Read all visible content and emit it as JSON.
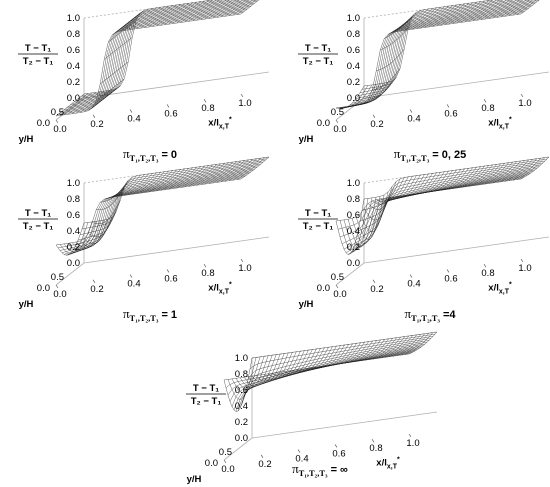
{
  "figure": {
    "z_axis_label": {
      "numerator": "T − T₁",
      "denominator": "T₂ − T₁"
    },
    "y_axis_label": "y/H",
    "x_axis_label": "x/l",
    "x_axis_label_subscript": "x,T",
    "x_axis_label_superscript": "*",
    "caption_symbol": "π",
    "caption_subscript": "T₁,T₂,T₃"
  },
  "chart_data": [
    {
      "type": "surface",
      "panel": "a",
      "caption_value": "= 0",
      "z_ticks": [
        "0.0",
        "0.2",
        "0.4",
        "0.6",
        "0.8",
        "1.0"
      ],
      "x_ticks": [
        "0.0",
        "0.2",
        "0.4",
        "0.6",
        "0.8",
        "1.0"
      ],
      "y_ticks": [
        "0.0",
        "0.5"
      ],
      "xlim": [
        0,
        1
      ],
      "ylim": [
        0,
        1
      ],
      "zlim": [
        0,
        1
      ],
      "surface": {
        "near_wall_min": 0.05,
        "step_location": 0.25,
        "plateau": 1.0,
        "bowl_depth": 0.0
      }
    },
    {
      "type": "surface",
      "panel": "b",
      "caption_value": "= 0, 25",
      "z_ticks": [
        "0.0",
        "0.2",
        "0.4",
        "0.6",
        "0.8",
        "1.0"
      ],
      "x_ticks": [
        "0.0",
        "0.2",
        "0.4",
        "0.6",
        "0.8",
        "1.0"
      ],
      "y_ticks": [
        "0.0",
        "0.5"
      ],
      "xlim": [
        0,
        1
      ],
      "ylim": [
        0,
        1
      ],
      "zlim": [
        0,
        1
      ],
      "surface": {
        "near_wall_min": 0.15,
        "step_location": 0.22,
        "plateau": 1.0,
        "bowl_depth": 0.1
      }
    },
    {
      "type": "surface",
      "panel": "c",
      "caption_value": "= 1",
      "z_ticks": [
        "0.0",
        "0.2",
        "0.4",
        "0.6",
        "0.8",
        "1.0"
      ],
      "x_ticks": [
        "0.0",
        "0.2",
        "0.4",
        "0.6",
        "0.8",
        "1.0"
      ],
      "y_ticks": [
        "0.0",
        "0.5"
      ],
      "xlim": [
        0,
        1
      ],
      "ylim": [
        0,
        1
      ],
      "zlim": [
        0,
        1
      ],
      "surface": {
        "near_wall_min": 0.5,
        "step_location": 0.2,
        "plateau": 1.0,
        "bowl_depth": 0.25
      }
    },
    {
      "type": "surface",
      "panel": "d",
      "caption_value": "=4",
      "z_ticks": [
        "0.0",
        "0.2",
        "0.4",
        "0.6",
        "0.8",
        "1.0"
      ],
      "x_ticks": [
        "0.0",
        "0.2",
        "0.4",
        "0.6",
        "0.8",
        "1.0"
      ],
      "y_ticks": [
        "0.0",
        "0.5"
      ],
      "xlim": [
        0,
        1
      ],
      "ylim": [
        0,
        1
      ],
      "zlim": [
        0,
        1
      ],
      "surface": {
        "near_wall_min": 0.8,
        "step_location": 0.15,
        "plateau": 1.0,
        "bowl_depth": 0.55
      }
    },
    {
      "type": "surface",
      "panel": "e",
      "caption_value": "= ∞",
      "z_ticks": [
        "0.0",
        "0.2",
        "0.4",
        "0.6",
        "0.8",
        "1.0"
      ],
      "x_ticks": [
        "0.0",
        "0.2",
        "0.4",
        "0.6",
        "0.8",
        "1.0"
      ],
      "y_ticks": [
        "0.0",
        "0.5"
      ],
      "xlim": [
        0,
        1
      ],
      "ylim": [
        0,
        1
      ],
      "zlim": [
        0,
        1
      ],
      "surface": {
        "near_wall_min": 1.0,
        "step_location": 0.0,
        "plateau": 1.0,
        "bowl_depth": 0.75
      }
    }
  ]
}
